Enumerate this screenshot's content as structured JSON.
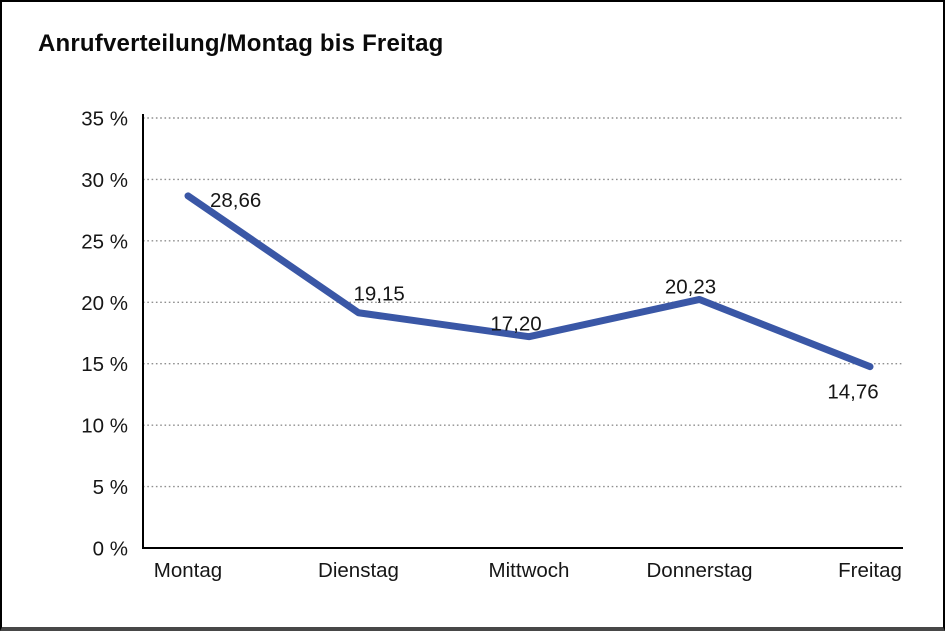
{
  "title": "Anrufverteilung/Montag bis Freitag",
  "chart_data": {
    "type": "line",
    "title": "Anrufverteilung/Montag bis Freitag",
    "categories": [
      "Montag",
      "Dienstag",
      "Mittwoch",
      "Donnerstag",
      "Freitag"
    ],
    "series": [
      {
        "name": "Anrufverteilung",
        "values": [
          28.66,
          19.15,
          17.2,
          20.23,
          14.76
        ]
      }
    ],
    "value_labels": [
      "28,66",
      "19,15",
      "17,20",
      "20,23",
      "14,76"
    ],
    "xlabel": "",
    "ylabel": "",
    "ylim": [
      0,
      35
    ],
    "ytick_step": 5,
    "ytick_labels": [
      "0 %",
      "5 %",
      "10 %",
      "15 %",
      "20 %",
      "25 %",
      "30 %",
      "35 %"
    ],
    "grid": "horizontal-dotted",
    "legend_position": "none",
    "line_color": "#3A57A6"
  },
  "colors": {
    "line": "#3A57A6",
    "grid": "#8F8F8F",
    "axis": "#000000",
    "text": "#161616",
    "background": "#FFFFFF",
    "frame_border": "#000000"
  }
}
